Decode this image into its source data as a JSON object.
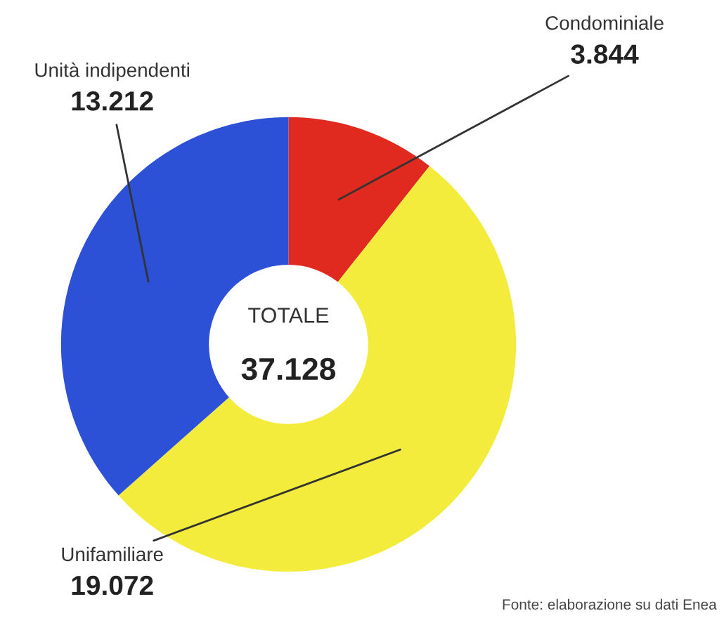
{
  "chart_data": {
    "type": "donut",
    "categories": [
      "Condominiale",
      "Unifamiliare",
      "Unità indipendenti"
    ],
    "values": [
      3844,
      19072,
      13212
    ],
    "value_labels": [
      "3.844",
      "19.072",
      "13.212"
    ],
    "colors": [
      "#e02a1f",
      "#f4ec3c",
      "#2c50d6"
    ],
    "legend": false,
    "annotations": [
      "TOTALE",
      "37.128",
      "Fonte: elaborazione su dati Enea"
    ]
  }
}
